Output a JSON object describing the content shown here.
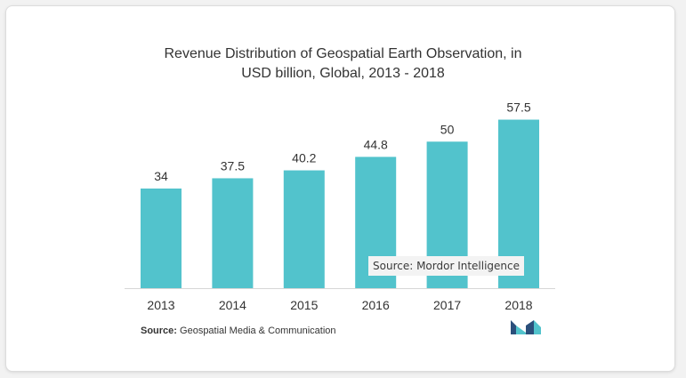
{
  "title": {
    "line1": "Revenue Distribution of Geospatial Earth Observation, in",
    "line2": "USD billion, Global, 2013 - 2018"
  },
  "watermark": "Source: Mordor Intelligence",
  "source": {
    "label": "Source:",
    "text": " Geospatial Media & Communication"
  },
  "logo_icon": "mordor-intelligence-logo-icon",
  "colors": {
    "bar": "#52c3cc",
    "logo_dark": "#2b4f7b",
    "logo_light": "#52c3cc"
  },
  "chart_data": {
    "type": "bar",
    "title": "Revenue Distribution of Geospatial Earth Observation, in USD billion, Global, 2013 - 2018",
    "categories": [
      "2013",
      "2014",
      "2015",
      "2016",
      "2017",
      "2018"
    ],
    "values": [
      34,
      37.5,
      40.2,
      44.8,
      50,
      57.5
    ],
    "value_labels": [
      "34",
      "37.5",
      "40.2",
      "44.8",
      "50",
      "57.5"
    ],
    "xlabel": "",
    "ylabel": "",
    "ylim": [
      0,
      60
    ],
    "grid": false,
    "y_axis_visible": false
  }
}
